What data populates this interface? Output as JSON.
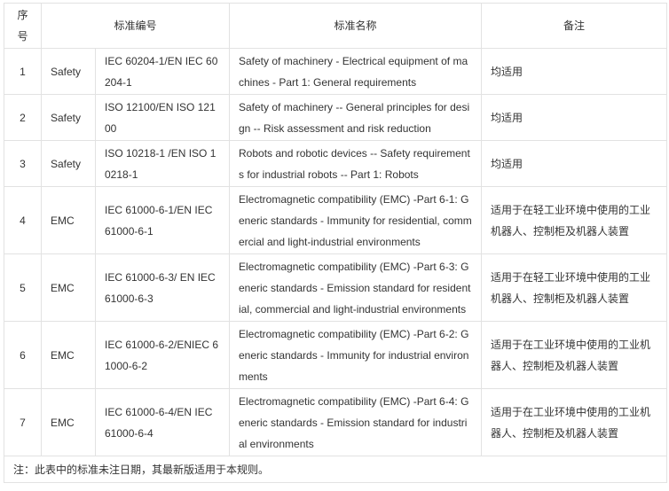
{
  "header": {
    "no": [
      "序",
      "号"
    ],
    "code": "标准编号",
    "name": "标准名称",
    "remark": "备注"
  },
  "rows": [
    {
      "no": "1",
      "type": "Safety",
      "code": [
        "IEC 60204-1/EN IEC 60",
        "204-1"
      ],
      "name": [
        "Safety of machinery - Electrical equipment of ma",
        "chines - Part 1: General requirements"
      ],
      "remark": [
        "均适用"
      ]
    },
    {
      "no": "2",
      "type": "Safety",
      "code": [
        "ISO 12100/EN ISO 121",
        "00"
      ],
      "name": [
        "Safety of machinery -- General principles for desi",
        "gn -- Risk assessment and risk reduction"
      ],
      "remark": [
        "均适用"
      ]
    },
    {
      "no": "3",
      "type": "Safety",
      "code": [
        "ISO 10218-1 /EN ISO 1",
        "0218-1"
      ],
      "name": [
        "Robots and robotic devices -- Safety requirement",
        "s for industrial robots -- Part 1: Robots"
      ],
      "remark": [
        "均适用"
      ]
    },
    {
      "no": "4",
      "type": "EMC",
      "code": [
        "IEC 61000-6-1/EN IEC",
        "61000-6-1"
      ],
      "name": [
        "Electromagnetic compatibility (EMC) -Part 6-1: G",
        "eneric standards - Immunity for residential, comm",
        "ercial and light-industrial environments"
      ],
      "remark": [
        "适用于在轻工业环境中使用的工业",
        "机器人、控制柜及机器人装置"
      ]
    },
    {
      "no": "5",
      "type": "EMC",
      "code": [
        "IEC 61000-6-3/ EN IEC",
        "61000-6-3"
      ],
      "name": [
        "Electromagnetic compatibility (EMC) -Part 6-3: G",
        "eneric standards - Emission standard for resident",
        "ial, commercial and light-industrial environments"
      ],
      "remark": [
        "适用于在轻工业环境中使用的工业",
        "机器人、控制柜及机器人装置"
      ]
    },
    {
      "no": "6",
      "type": "EMC",
      "code": [
        "IEC 61000-6-2/ENIEC 6",
        "1000-6-2"
      ],
      "name": [
        "Electromagnetic compatibility (EMC) -Part 6-2: G",
        "eneric standards - Immunity for industrial environ",
        "ments"
      ],
      "remark": [
        "适用于在工业环境中使用的工业机",
        "器人、控制柜及机器人装置"
      ]
    },
    {
      "no": "7",
      "type": "EMC",
      "code": [
        "IEC 61000-6-4/EN IEC",
        "61000-6-4"
      ],
      "name": [
        "Electromagnetic compatibility (EMC) -Part 6-4: G",
        "eneric standards - Emission standard for industri",
        "al environments"
      ],
      "remark": [
        "适用于在工业环境中使用的工业机",
        "器人、控制柜及机器人装置"
      ]
    }
  ],
  "footnote": "注：此表中的标准未注日期，其最新版适用于本规则。"
}
